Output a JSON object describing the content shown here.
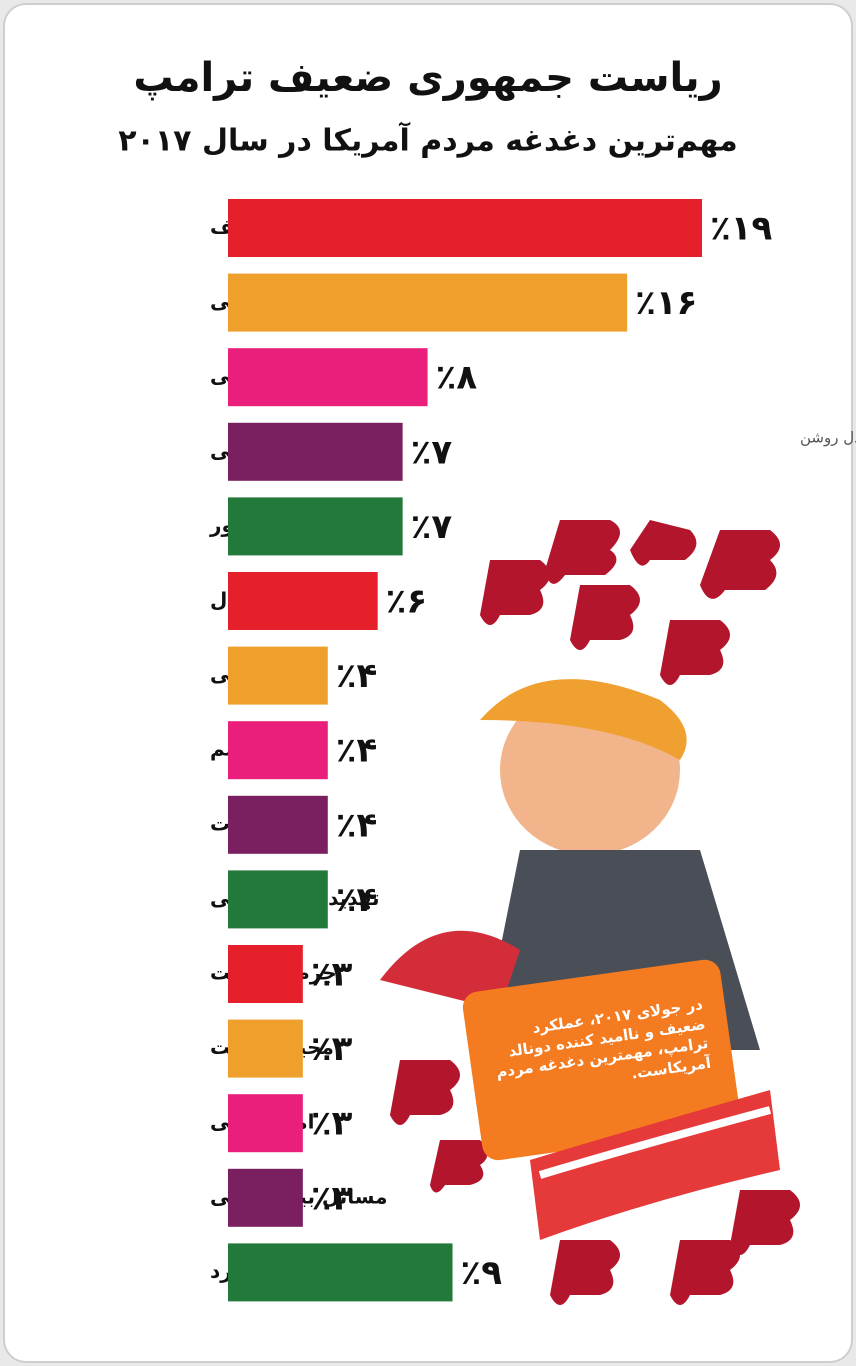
{
  "chart_data": {
    "type": "bar",
    "orientation": "horizontal",
    "title": "ریاست جمهوری ضعیف ترامپ",
    "subtitle": "مهم‌ترین دغدغه مردم آمریکا در سال ۲۰۱۷",
    "credit": "اینفوگرافیک: مهدی دل روشن",
    "annotation": "در جولای ۲۰۱۷، عملکرد ضعیف و ناامید کننده دونالد ترامپ، مهمترین دغدغه مردم آمریکاست.",
    "categories": [
      "رهبری ضعیف",
      "خدمات درمانی",
      "اقتصاد عمومی",
      "مهاجران غیرقانونی",
      "متحد کردن کشور",
      "بیکاری / اشتغال",
      "نژاد پرستی",
      "تروریسم",
      "اخلاقیات",
      "تهدید کره شمالی",
      "جرم و جنایت",
      "محیط زیست",
      "امنیت ملی",
      "مسائل بین المللی",
      "سایر موارد"
    ],
    "values": [
      19,
      16,
      8,
      7,
      7,
      6,
      4,
      4,
      4,
      4,
      3,
      3,
      3,
      3,
      9
    ],
    "value_labels": [
      "٪۱۹",
      "٪۱۶",
      "٪۸",
      "٪۷",
      "٪۷",
      "٪۶",
      "٪۴",
      "٪۴",
      "٪۴",
      "٪۴",
      "٪۳",
      "٪۳",
      "٪۳",
      "٪۳",
      "٪۹"
    ],
    "colors": [
      "#e6202b",
      "#efa02c",
      "#ea1f7c",
      "#7a1f5f",
      "#23793a",
      "#e6202b",
      "#efa02c",
      "#ea1f7c",
      "#7a1f5f",
      "#23793a",
      "#e6202b",
      "#efa02c",
      "#ea1f7c",
      "#7a1f5f",
      "#23793a"
    ]
  }
}
